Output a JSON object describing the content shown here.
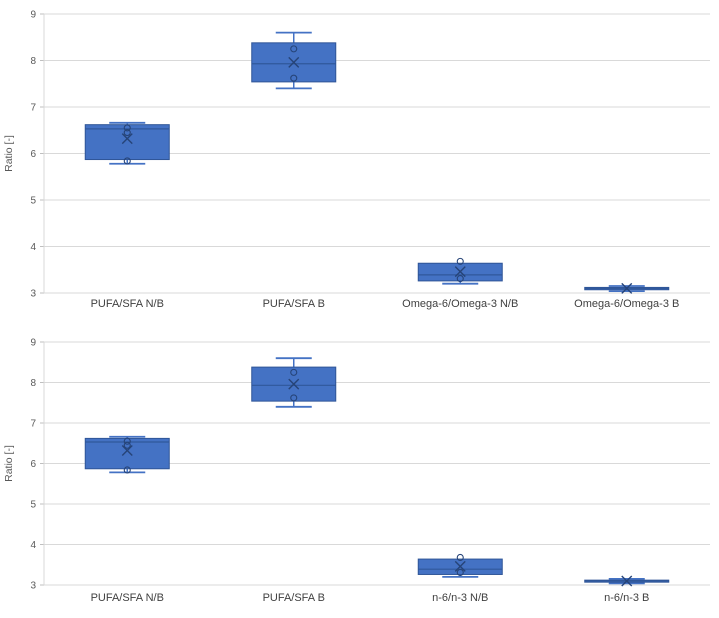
{
  "figure": {
    "background": "#ffffff"
  },
  "colors": {
    "box_fill": "#4472C4",
    "box_border": "#2F5597",
    "median_line": "#2F5597",
    "whisker": "#4472C4",
    "mean_marker": "#264478",
    "point_marker": "#264478",
    "gridline": "#D9D9D9",
    "axis_line": "#D9D9D9",
    "tick_mark": "#BFBFBF",
    "tick_label": "#595959",
    "category_label": "#404040",
    "axis_title": "#595959"
  },
  "chart_data": [
    {
      "type": "box",
      "title": "",
      "xlabel": "",
      "ylabel": "Ratio [-]",
      "ylim": [
        3,
        9
      ],
      "yticks": [
        3,
        4,
        5,
        6,
        7,
        8,
        9
      ],
      "grid": true,
      "legend": false,
      "categories": [
        "PUFA/SFA N/B",
        "PUFA/SFA B",
        "Omega-6/Omega-3 N/B",
        "Omega-6/Omega-3 B"
      ],
      "boxes": [
        {
          "category": "PUFA/SFA N/B",
          "whisker_low": 5.78,
          "q1": 5.87,
          "median": 6.53,
          "q3": 6.62,
          "whisker_high": 6.66,
          "mean": 6.32,
          "points": [
            6.55,
            6.45,
            5.84
          ]
        },
        {
          "category": "PUFA/SFA B",
          "whisker_low": 7.4,
          "q1": 7.54,
          "median": 7.93,
          "q3": 8.38,
          "whisker_high": 8.6,
          "mean": 7.96,
          "points": [
            8.25,
            7.62
          ]
        },
        {
          "category": "Omega-6/Omega-3 N/B",
          "whisker_low": 3.2,
          "q1": 3.26,
          "median": 3.39,
          "q3": 3.64,
          "whisker_high": 3.64,
          "mean": 3.46,
          "points": [
            3.68,
            3.31
          ]
        },
        {
          "category": "Omega-6/Omega-3 B",
          "whisker_low": 3.04,
          "q1": 3.07,
          "median": 3.1,
          "q3": 3.12,
          "whisker_high": 3.15,
          "mean": 3.1,
          "points": []
        }
      ]
    },
    {
      "type": "box",
      "title": "",
      "xlabel": "",
      "ylabel": "Ratio [-]",
      "ylim": [
        3,
        9
      ],
      "yticks": [
        3,
        4,
        5,
        6,
        7,
        8,
        9
      ],
      "grid": true,
      "legend": false,
      "categories": [
        "PUFA/SFA N/B",
        "PUFA/SFA B",
        "n-6/n-3 N/B",
        "n-6/n-3 B"
      ],
      "boxes": [
        {
          "category": "PUFA/SFA N/B",
          "whisker_low": 5.78,
          "q1": 5.87,
          "median": 6.53,
          "q3": 6.62,
          "whisker_high": 6.66,
          "mean": 6.32,
          "points": [
            6.55,
            6.45,
            5.84
          ]
        },
        {
          "category": "PUFA/SFA B",
          "whisker_low": 7.4,
          "q1": 7.54,
          "median": 7.93,
          "q3": 8.38,
          "whisker_high": 8.6,
          "mean": 7.96,
          "points": [
            8.25,
            7.62
          ]
        },
        {
          "category": "n-6/n-3 N/B",
          "whisker_low": 3.2,
          "q1": 3.26,
          "median": 3.39,
          "q3": 3.64,
          "whisker_high": 3.64,
          "mean": 3.46,
          "points": [
            3.68,
            3.31
          ]
        },
        {
          "category": "n-6/n-3 B",
          "whisker_low": 3.04,
          "q1": 3.07,
          "median": 3.1,
          "q3": 3.12,
          "whisker_high": 3.15,
          "mean": 3.1,
          "points": []
        }
      ]
    }
  ]
}
